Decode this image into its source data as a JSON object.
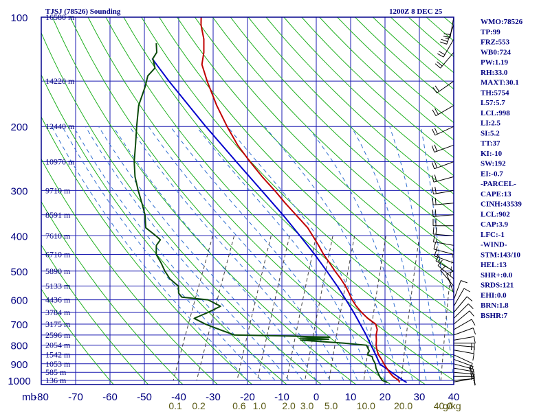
{
  "header": {
    "station": "TJSJ (78526) Sounding",
    "time": "1200Z  8 DEC 25"
  },
  "colors": {
    "frame": "#00008b",
    "grid": "#1a1ab0",
    "dry_adiabat": "#20b020",
    "moist_adiabat": "#2f6fd0",
    "mixing_ratio": "#404040",
    "temperature": "#c00000",
    "dewpoint": "#0a4a0a",
    "parcel": "#0000cc",
    "mixing_label": "#5a5a14",
    "text": "#000080"
  },
  "chart_data": {
    "type": "skew-t sounding",
    "x_axis_unit_label": "mb",
    "pressure_ticks": [
      100,
      200,
      300,
      400,
      500,
      600,
      700,
      800,
      900,
      1000
    ],
    "temperature_ticks": [
      -80,
      -70,
      -60,
      -50,
      -40,
      -30,
      -20,
      -10,
      0,
      10,
      20,
      30,
      40
    ],
    "mixing_ratio_labels": [
      "0.1",
      "0.2",
      "0.6",
      "1.0",
      "2.0",
      "3.0",
      "5.0",
      "10.0",
      "20.0",
      "40.0",
      "g/kg"
    ],
    "height_labels": [
      {
        "p": 100,
        "label": "16580 m"
      },
      {
        "p": 150,
        "label": "14220 m"
      },
      {
        "p": 200,
        "label": "12440 m"
      },
      {
        "p": 250,
        "label": "10970 m"
      },
      {
        "p": 300,
        "label": "9710 m"
      },
      {
        "p": 350,
        "label": "8591 m"
      },
      {
        "p": 400,
        "label": "7610 m"
      },
      {
        "p": 450,
        "label": "6710 m"
      },
      {
        "p": 500,
        "label": "5890 m"
      },
      {
        "p": 550,
        "label": "5133 m"
      },
      {
        "p": 600,
        "label": "4436 m"
      },
      {
        "p": 650,
        "label": "3784 m"
      },
      {
        "p": 700,
        "label": "3175 m"
      },
      {
        "p": 750,
        "label": "2596 m"
      },
      {
        "p": 800,
        "label": "2054 m"
      },
      {
        "p": 850,
        "label": "1542 m"
      },
      {
        "p": 900,
        "label": "1053 m"
      },
      {
        "p": 950,
        "label": "585 m"
      },
      {
        "p": 1000,
        "label": "136 m"
      }
    ],
    "temperature_profile": [
      [
        1013,
        24.5
      ],
      [
        1000,
        24.0
      ],
      [
        975,
        21.8
      ],
      [
        950,
        20.2
      ],
      [
        925,
        18.8
      ],
      [
        900,
        17.4
      ],
      [
        875,
        16.1
      ],
      [
        850,
        14.6
      ],
      [
        825,
        13.5
      ],
      [
        800,
        12.6
      ],
      [
        775,
        12.0
      ],
      [
        750,
        11.2
      ],
      [
        725,
        10.8
      ],
      [
        700,
        9.6
      ],
      [
        675,
        6.5
      ],
      [
        650,
        3.9
      ],
      [
        625,
        1.5
      ],
      [
        600,
        -0.6
      ],
      [
        575,
        -2.4
      ],
      [
        550,
        -4.4
      ],
      [
        525,
        -6.8
      ],
      [
        500,
        -9.5
      ],
      [
        475,
        -12.2
      ],
      [
        450,
        -15.1
      ],
      [
        425,
        -17.8
      ],
      [
        400,
        -20.8
      ],
      [
        380,
        -23.4
      ],
      [
        350,
        -28.6
      ],
      [
        325,
        -33.3
      ],
      [
        300,
        -38.1
      ],
      [
        275,
        -43.6
      ],
      [
        250,
        -49.2
      ],
      [
        225,
        -55.1
      ],
      [
        200,
        -60.7
      ],
      [
        175,
        -66.6
      ],
      [
        150,
        -72.7
      ],
      [
        135,
        -76.5
      ],
      [
        125,
        -77.6
      ],
      [
        115,
        -79.4
      ],
      [
        105,
        -82.2
      ],
      [
        100,
        -83.2
      ]
    ],
    "dewpoint_profile": [
      [
        1013,
        21.0
      ],
      [
        1000,
        19.2
      ],
      [
        975,
        17.9
      ],
      [
        950,
        16.8
      ],
      [
        925,
        15.7
      ],
      [
        900,
        14.9
      ],
      [
        875,
        13.6
      ],
      [
        860,
        13.0
      ],
      [
        850,
        11.4
      ],
      [
        830,
        11.4
      ],
      [
        800,
        9.8
      ],
      [
        790,
        3.0
      ],
      [
        775,
        -10.0
      ],
      [
        770,
        -2.0
      ],
      [
        765,
        -10.5
      ],
      [
        760,
        -2.0
      ],
      [
        755,
        -14.0
      ],
      [
        750,
        -30.0
      ],
      [
        720,
        -36.0
      ],
      [
        700,
        -39.9
      ],
      [
        675,
        -44.0
      ],
      [
        650,
        -40.8
      ],
      [
        625,
        -38.0
      ],
      [
        600,
        -42.5
      ],
      [
        590,
        -50.5
      ],
      [
        575,
        -52.0
      ],
      [
        550,
        -53.0
      ],
      [
        525,
        -56.5
      ],
      [
        500,
        -59.0
      ],
      [
        475,
        -61.2
      ],
      [
        450,
        -63.8
      ],
      [
        425,
        -65.0
      ],
      [
        410,
        -64.6
      ],
      [
        400,
        -66.4
      ],
      [
        380,
        -70.5
      ],
      [
        350,
        -72.5
      ],
      [
        325,
        -75.0
      ],
      [
        300,
        -77.8
      ],
      [
        275,
        -80.6
      ],
      [
        250,
        -82.9
      ],
      [
        225,
        -84.8
      ],
      [
        200,
        -87.0
      ],
      [
        175,
        -89.3
      ],
      [
        155,
        -90.0
      ],
      [
        145,
        -90.7
      ],
      [
        138,
        -89.7
      ],
      [
        130,
        -91.6
      ],
      [
        125,
        -91.3
      ],
      [
        118,
        -92.7
      ]
    ],
    "parcel_profile": [
      [
        1013,
        26.6
      ],
      [
        1000,
        25.3
      ],
      [
        975,
        23.1
      ],
      [
        950,
        20.8
      ],
      [
        925,
        18.5
      ],
      [
        902,
        16.3
      ],
      [
        875,
        15.0
      ],
      [
        850,
        13.8
      ],
      [
        800,
        11.1
      ],
      [
        750,
        8.3
      ],
      [
        700,
        5.1
      ],
      [
        650,
        1.6
      ],
      [
        600,
        -2.4
      ],
      [
        550,
        -6.8
      ],
      [
        500,
        -11.9
      ],
      [
        450,
        -17.7
      ],
      [
        400,
        -24.5
      ],
      [
        350,
        -32.4
      ],
      [
        300,
        -41.9
      ],
      [
        250,
        -53.2
      ],
      [
        200,
        -66.9
      ],
      [
        150,
        -83.8
      ],
      [
        130,
        -91.8
      ]
    ],
    "wind_barbs": [
      {
        "p": 1010,
        "dir": 80,
        "spd": 10
      },
      {
        "p": 1000,
        "dir": 85,
        "spd": 12
      },
      {
        "p": 975,
        "dir": 90,
        "spd": 15
      },
      {
        "p": 950,
        "dir": 95,
        "spd": 18
      },
      {
        "p": 925,
        "dir": 100,
        "spd": 18
      },
      {
        "p": 900,
        "dir": 105,
        "spd": 16
      },
      {
        "p": 875,
        "dir": 110,
        "spd": 15
      },
      {
        "p": 850,
        "dir": 115,
        "spd": 12
      },
      {
        "p": 825,
        "dir": 100,
        "spd": 10
      },
      {
        "p": 800,
        "dir": 95,
        "spd": 15
      },
      {
        "p": 790,
        "dir": 90,
        "spd": 15
      },
      {
        "p": 775,
        "dir": 80,
        "spd": 10
      },
      {
        "p": 750,
        "dir": 70,
        "spd": 10
      },
      {
        "p": 725,
        "dir": 60,
        "spd": 10
      },
      {
        "p": 700,
        "dir": 50,
        "spd": 10
      },
      {
        "p": 675,
        "dir": 45,
        "spd": 10
      },
      {
        "p": 650,
        "dir": 40,
        "spd": 10
      },
      {
        "p": 625,
        "dir": 30,
        "spd": 10
      },
      {
        "p": 600,
        "dir": 20,
        "spd": 10
      },
      {
        "p": 575,
        "dir": 340,
        "spd": 10
      },
      {
        "p": 550,
        "dir": 320,
        "spd": 10
      },
      {
        "p": 525,
        "dir": 310,
        "spd": 10
      },
      {
        "p": 500,
        "dir": 300,
        "spd": 15
      },
      {
        "p": 475,
        "dir": 290,
        "spd": 15
      },
      {
        "p": 450,
        "dir": 285,
        "spd": 15
      },
      {
        "p": 425,
        "dir": 280,
        "spd": 15
      },
      {
        "p": 400,
        "dir": 275,
        "spd": 20
      },
      {
        "p": 375,
        "dir": 270,
        "spd": 20
      },
      {
        "p": 350,
        "dir": 265,
        "spd": 20
      },
      {
        "p": 325,
        "dir": 265,
        "spd": 20
      },
      {
        "p": 300,
        "dir": 260,
        "spd": 20
      },
      {
        "p": 275,
        "dir": 255,
        "spd": 20
      },
      {
        "p": 250,
        "dir": 250,
        "spd": 20
      },
      {
        "p": 225,
        "dir": 250,
        "spd": 20
      },
      {
        "p": 200,
        "dir": 245,
        "spd": 20
      },
      {
        "p": 175,
        "dir": 240,
        "spd": 20
      },
      {
        "p": 150,
        "dir": 235,
        "spd": 20
      },
      {
        "p": 125,
        "dir": 220,
        "spd": 20
      },
      {
        "p": 115,
        "dir": 210,
        "spd": 20
      },
      {
        "p": 105,
        "dir": 200,
        "spd": 25
      },
      {
        "p": 100,
        "dir": 190,
        "spd": 20
      }
    ]
  },
  "indices": [
    "WMO:78526",
    "TP:99",
    "FRZ:553",
    "WB0:724",
    "PW:1.19",
    "RH:33.0",
    "MAXT:30.1",
    "TH:5754",
    "L57:5.7",
    "LCL:998",
    "LI:2.5",
    "SI:5.2",
    "TT:37",
    "KI:-10",
    "SW:192",
    "EI:-0.7",
    "-PARCEL-",
    "CAPE:13",
    "CINH:43539",
    "LCL:902",
    "CAP:3.9",
    "LFC:-1",
    "-WIND-",
    "STM:143/10",
    "HEL:13",
    "SHR+:0.0",
    "SRDS:121",
    "EHI:0.0",
    "BRN:1.8",
    "BSHR:7"
  ]
}
